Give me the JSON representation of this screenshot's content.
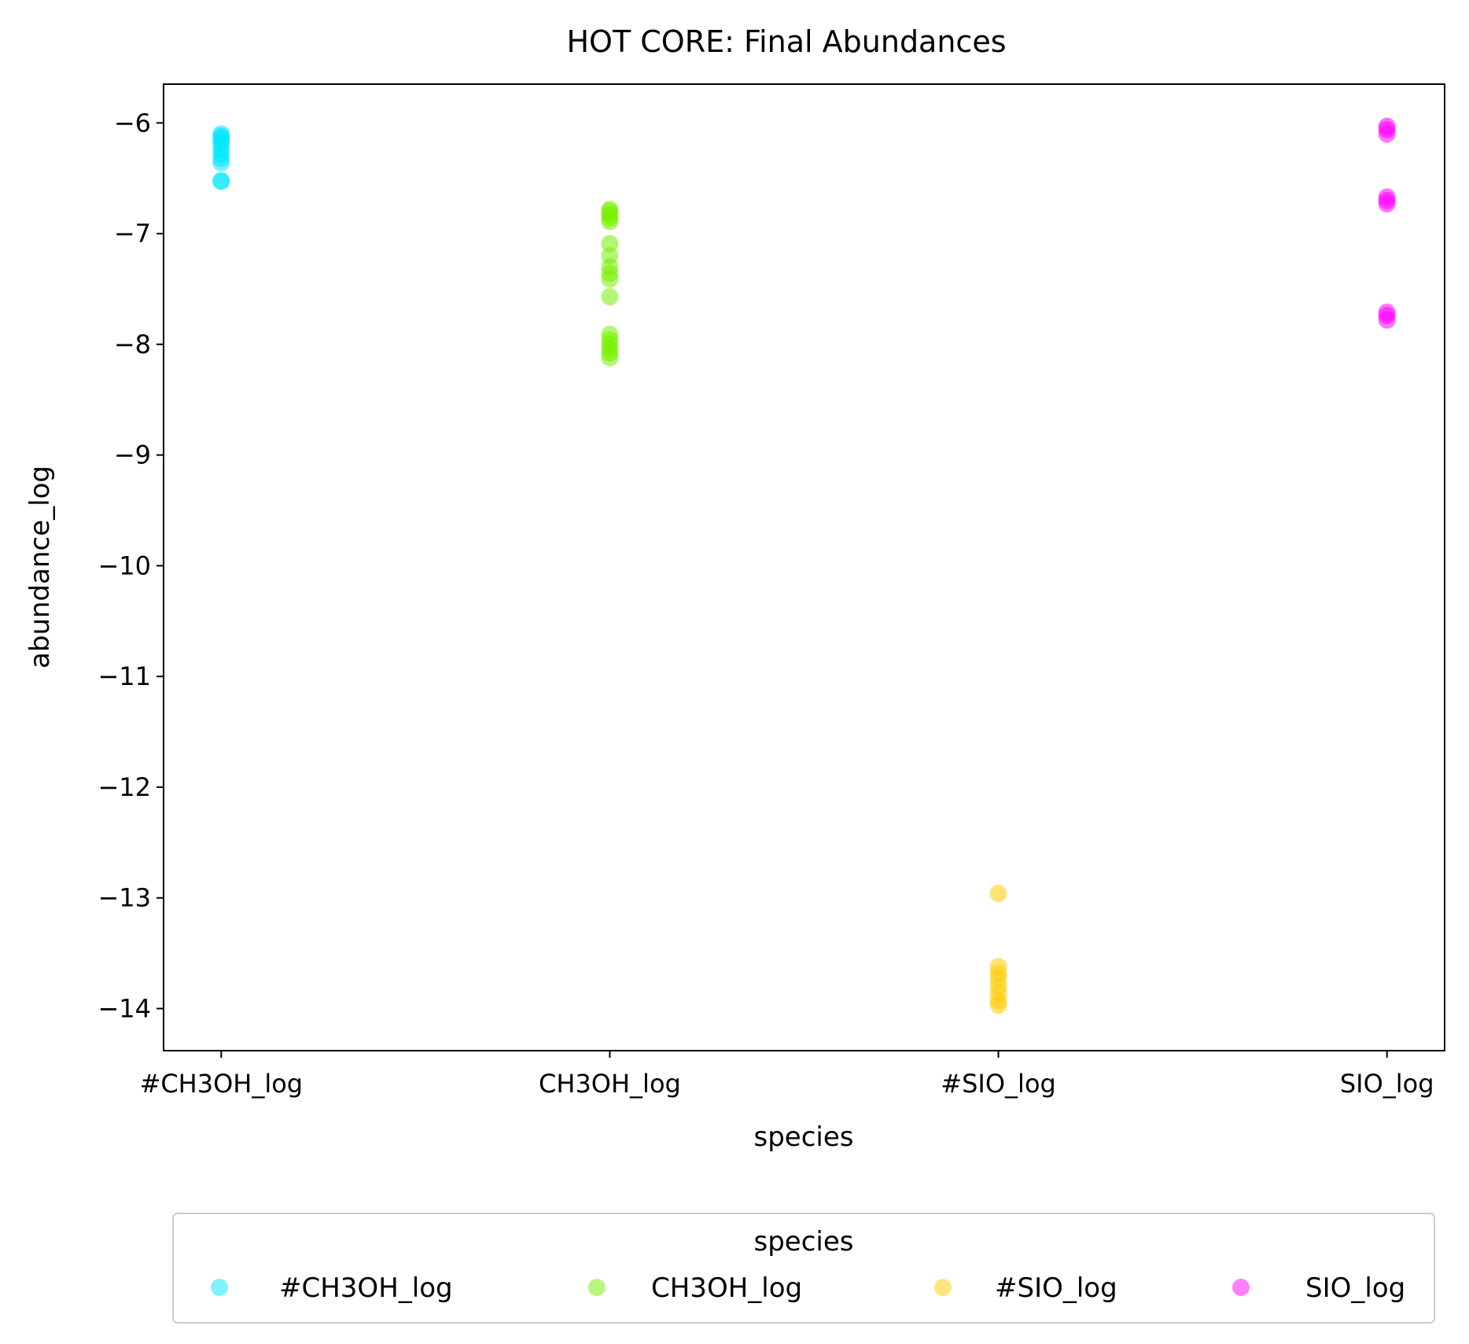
{
  "chart_data": {
    "type": "scatter",
    "title": "HOT CORE: Final Abundances",
    "xlabel": "species",
    "ylabel": "abundance_log",
    "categories": [
      "#CH3OH_log",
      "CH3OH_log",
      "#SIO_log",
      "SIO_log"
    ],
    "yticks": [
      -6,
      -7,
      -8,
      -9,
      -10,
      -11,
      -12,
      -13,
      -14
    ],
    "ylim": [
      -14.38,
      -5.65
    ],
    "grid": false,
    "legend": {
      "title": "species",
      "placement": "bottom-center",
      "entries": [
        "#CH3OH_log",
        "CH3OH_log",
        "#SIO_log",
        "SIO_log"
      ]
    },
    "series": [
      {
        "name": "#CH3OH_log",
        "color": "#00e5ff",
        "values": [
          -6.1,
          -6.12,
          -6.14,
          -6.17,
          -6.2,
          -6.24,
          -6.28,
          -6.32,
          -6.36,
          -6.52,
          -6.53
        ]
      },
      {
        "name": "CH3OH_log",
        "color": "#76ee00",
        "values": [
          -6.78,
          -6.8,
          -6.83,
          -6.86,
          -6.89,
          -7.09,
          -7.2,
          -7.3,
          -7.36,
          -7.41,
          -7.57,
          -7.91,
          -7.96,
          -8.0,
          -8.04,
          -8.08,
          -8.12
        ]
      },
      {
        "name": "#SIO_log",
        "color": "#ffcc00",
        "values": [
          -12.96,
          -13.62,
          -13.68,
          -13.73,
          -13.8,
          -13.86,
          -13.93,
          -13.97
        ]
      },
      {
        "name": "SIO_log",
        "color": "#ff00ff",
        "values": [
          -6.03,
          -6.06,
          -6.1,
          -6.67,
          -6.7,
          -6.73,
          -7.71,
          -7.74,
          -7.78
        ]
      }
    ]
  }
}
